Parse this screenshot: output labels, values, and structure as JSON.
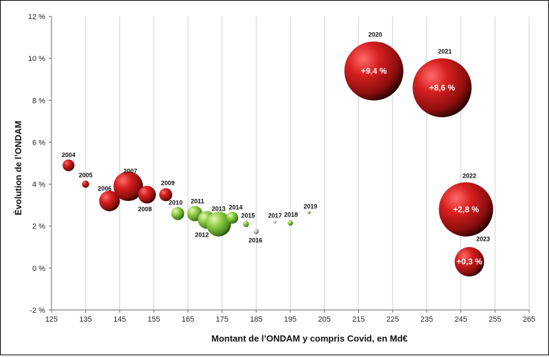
{
  "chart_data": {
    "type": "scatter",
    "xlabel": "Montant de l’ONDAM y compris Covid, en Md€",
    "ylabel": "Évolution de l’ONDAM",
    "xlim": [
      125,
      265
    ],
    "ylim": [
      -2,
      12
    ],
    "x_ticks": [
      "125",
      "135",
      "145",
      "155",
      "165",
      "175",
      "185",
      "195",
      "205",
      "215",
      "225",
      "235",
      "245",
      "255",
      "265"
    ],
    "y_ticks": [
      "-2 %",
      "0 %",
      "2 %",
      "4 %",
      "6 %",
      "8 %",
      "10 %",
      "12 %"
    ],
    "grid": "vertical",
    "colors": {
      "increase_high": "#cc1f1f",
      "increase_low": "#86c43f",
      "neutral": "#c8c8c8"
    },
    "points": [
      {
        "year": "2004",
        "x": 130,
        "y": 4.9,
        "size": 0.2,
        "color": "red",
        "label": ""
      },
      {
        "year": "2005",
        "x": 135,
        "y": 4.0,
        "size": 0.12,
        "color": "red",
        "label": ""
      },
      {
        "year": "2006",
        "x": 142,
        "y": 3.2,
        "size": 0.35,
        "color": "red",
        "label": ""
      },
      {
        "year": "2007",
        "x": 147.5,
        "y": 3.9,
        "size": 0.5,
        "color": "red",
        "label": ""
      },
      {
        "year": "2008",
        "x": 153,
        "y": 3.5,
        "size": 0.3,
        "color": "red",
        "label": ""
      },
      {
        "year": "2009",
        "x": 158.5,
        "y": 3.5,
        "size": 0.22,
        "color": "red",
        "label": ""
      },
      {
        "year": "2010",
        "x": 162,
        "y": 2.6,
        "size": 0.22,
        "color": "green",
        "label": ""
      },
      {
        "year": "2011",
        "x": 167,
        "y": 2.6,
        "size": 0.26,
        "color": "green",
        "label": ""
      },
      {
        "year": "2012",
        "x": 170.5,
        "y": 2.3,
        "size": 0.3,
        "color": "green",
        "label": ""
      },
      {
        "year": "2013",
        "x": 174,
        "y": 2.1,
        "size": 0.42,
        "color": "green",
        "label": ""
      },
      {
        "year": "2014",
        "x": 178,
        "y": 2.4,
        "size": 0.2,
        "color": "green",
        "label": ""
      },
      {
        "year": "2015",
        "x": 182,
        "y": 2.1,
        "size": 0.1,
        "color": "green",
        "label": ""
      },
      {
        "year": "2016",
        "x": 185,
        "y": 1.75,
        "size": 0.09,
        "color": "gray",
        "label": ""
      },
      {
        "year": "2017",
        "x": 190.5,
        "y": 2.2,
        "size": 0.04,
        "color": "gray",
        "label": ""
      },
      {
        "year": "2018",
        "x": 195,
        "y": 2.15,
        "size": 0.09,
        "color": "green",
        "label": ""
      },
      {
        "year": "2019",
        "x": 200.5,
        "y": 2.65,
        "size": 0.05,
        "color": "green",
        "label": ""
      },
      {
        "year": "2020",
        "x": 219.5,
        "y": 9.4,
        "size": 1.0,
        "color": "red",
        "label": "+9,4 %"
      },
      {
        "year": "2021",
        "x": 239.5,
        "y": 8.6,
        "size": 1.0,
        "color": "red",
        "label": "+8,6 %"
      },
      {
        "year": "2022",
        "x": 246.5,
        "y": 2.8,
        "size": 0.92,
        "color": "red",
        "label": "+2,8 %"
      },
      {
        "year": "2023",
        "x": 247.5,
        "y": 0.3,
        "size": 0.5,
        "color": "red",
        "label": "+0,3 %"
      }
    ]
  }
}
